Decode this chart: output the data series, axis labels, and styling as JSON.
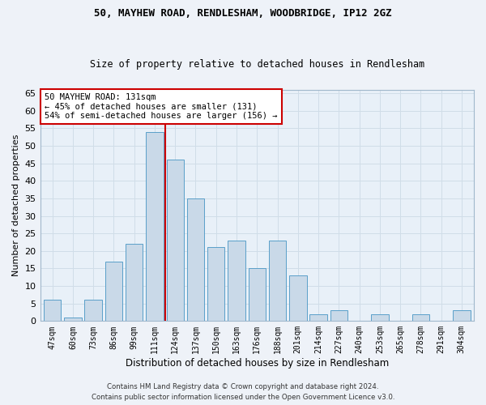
{
  "title1": "50, MAYHEW ROAD, RENDLESHAM, WOODBRIDGE, IP12 2GZ",
  "title2": "Size of property relative to detached houses in Rendlesham",
  "xlabel": "Distribution of detached houses by size in Rendlesham",
  "ylabel": "Number of detached properties",
  "categories": [
    "47sqm",
    "60sqm",
    "73sqm",
    "86sqm",
    "99sqm",
    "111sqm",
    "124sqm",
    "137sqm",
    "150sqm",
    "163sqm",
    "176sqm",
    "188sqm",
    "201sqm",
    "214sqm",
    "227sqm",
    "240sqm",
    "253sqm",
    "265sqm",
    "278sqm",
    "291sqm",
    "304sqm"
  ],
  "values": [
    6,
    1,
    6,
    17,
    22,
    54,
    46,
    35,
    21,
    23,
    15,
    23,
    13,
    2,
    3,
    0,
    2,
    0,
    2,
    0,
    3
  ],
  "bar_color": "#c9d9e8",
  "bar_edge_color": "#5a9fc9",
  "vline_x": 6.0,
  "annotation_title": "50 MAYHEW ROAD: 131sqm",
  "annotation_line1": "← 45% of detached houses are smaller (131)",
  "annotation_line2": "54% of semi-detached houses are larger (156) →",
  "annotation_box_color": "#ffffff",
  "annotation_box_edge": "#cc0000",
  "vline_color": "#cc0000",
  "ylim": [
    0,
    66
  ],
  "yticks": [
    0,
    5,
    10,
    15,
    20,
    25,
    30,
    35,
    40,
    45,
    50,
    55,
    60,
    65
  ],
  "grid_color": "#d0dde8",
  "bg_color": "#e8f0f8",
  "fig_bg_color": "#eef2f8",
  "footer1": "Contains HM Land Registry data © Crown copyright and database right 2024.",
  "footer2": "Contains public sector information licensed under the Open Government Licence v3.0."
}
